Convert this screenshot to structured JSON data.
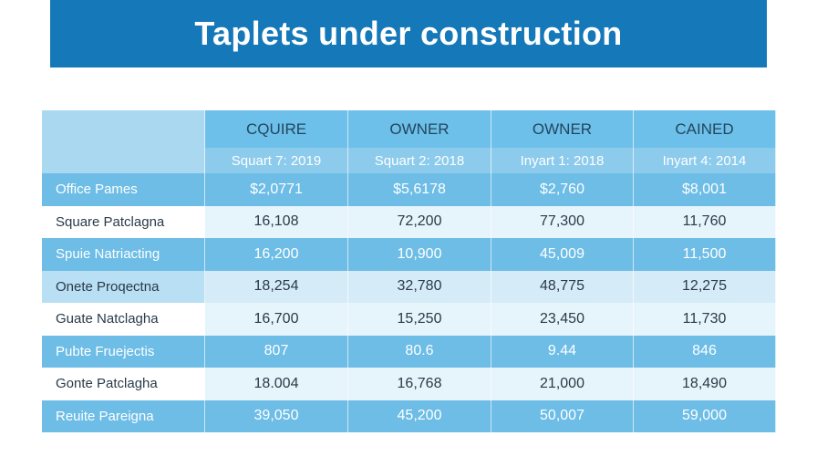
{
  "title": "Taplets under construction",
  "table": {
    "headers": [
      "",
      "CQUIRE",
      "OWNER",
      "OWNER",
      "CAINED"
    ],
    "subheaders": [
      "",
      "Squart 7: 2019",
      "Squart 2: 2018",
      "Inyart 1: 2018",
      "Inyart 4: 2014"
    ],
    "rows": [
      {
        "label": "Office Pames",
        "values": [
          "$2,0771",
          "$5,6178",
          "$2,760",
          "$8,001"
        ]
      },
      {
        "label": "Square Patclagna",
        "values": [
          "16,108",
          "72,200",
          "77,300",
          "11,760"
        ]
      },
      {
        "label": "Spuie Natriacting",
        "values": [
          "16,200",
          "10,900",
          "45,009",
          "11,500"
        ]
      },
      {
        "label": "Onete Proqectna",
        "values": [
          "18,254",
          "32,780",
          "48,775",
          "12,275"
        ]
      },
      {
        "label": "Guate Natclagha",
        "values": [
          "16,700",
          "15,250",
          "23,450",
          "11,730"
        ]
      },
      {
        "label": "Pubte Fruejectis",
        "values": [
          "807",
          "80.6",
          "9.44",
          "846"
        ]
      },
      {
        "label": "Gonte Patclagha",
        "values": [
          "18.004",
          "16,768",
          "21,000",
          "18,490"
        ]
      },
      {
        "label": "Reuite Pareigna",
        "values": [
          "39,050",
          "45,200",
          "50,007",
          "59,000"
        ]
      }
    ]
  }
}
